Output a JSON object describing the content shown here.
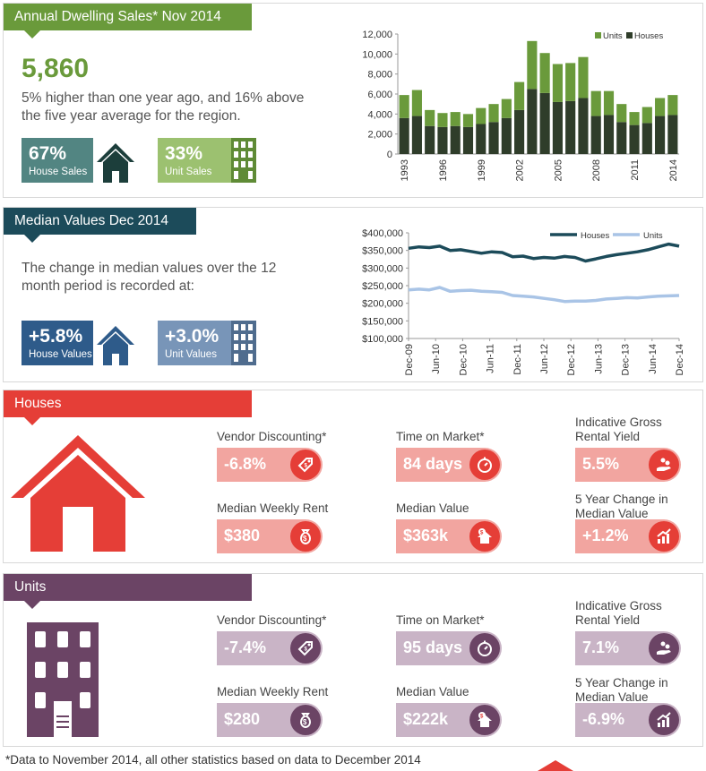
{
  "sales": {
    "title": "Annual Dwelling Sales* Nov 2014",
    "total": "5,860",
    "description": "5% higher than one year ago, and 16% above the five year average for the region.",
    "house_pct": "67%",
    "house_label": "House Sales",
    "unit_pct": "33%",
    "unit_label": "Unit Sales"
  },
  "median": {
    "title": "Median Values Dec 2014",
    "description": "The change in median values over the 12 month period is  recorded at:",
    "house_change": "+5.8%",
    "house_label": "House Values",
    "unit_change": "+3.0%",
    "unit_label": "Unit Values"
  },
  "houses": {
    "title": "Houses",
    "stats": [
      {
        "label": "Vendor Discounting*",
        "value": "-6.8%",
        "icon": "price-tag-icon"
      },
      {
        "label": "Time on Market*",
        "value": "84 days",
        "icon": "stopwatch-icon"
      },
      {
        "label": "Indicative Gross Rental Yield",
        "value": "5.5%",
        "icon": "hand-coins-icon"
      },
      {
        "label": "Median Weekly Rent",
        "value": "$380",
        "icon": "money-bag-icon"
      },
      {
        "label": "Median Value",
        "value": "$363k",
        "icon": "house-dollar-icon"
      },
      {
        "label": "5 Year Change in Median Value",
        "value": "+1.2%",
        "icon": "growth-chart-icon"
      }
    ]
  },
  "units": {
    "title": "Units",
    "stats": [
      {
        "label": "Vendor Discounting*",
        "value": "-7.4%",
        "icon": "price-tag-icon"
      },
      {
        "label": "Time on Market*",
        "value": "95 days",
        "icon": "stopwatch-icon"
      },
      {
        "label": "Indicative Gross Rental Yield",
        "value": "7.1%",
        "icon": "hand-coins-icon"
      },
      {
        "label": "Median Weekly Rent",
        "value": "$280",
        "icon": "money-bag-icon"
      },
      {
        "label": "Median Value",
        "value": "$222k",
        "icon": "house-dollar-icon"
      },
      {
        "label": "5 Year Change in Median Value",
        "value": "-6.9%",
        "icon": "growth-chart-icon"
      }
    ]
  },
  "footnote": "*Data to November 2014, all other statistics based on data to December 2014",
  "colors": {
    "green": "#6a9a3b",
    "dark_green": "#2f3d2a",
    "teal": "#1c4b5a",
    "house_red": "#e53e37",
    "house_pink": "#f2a5a0",
    "unit_purple": "#6b4465",
    "unit_lilac": "#c9b4c6",
    "navy": "#2e5b8a",
    "steel": "#7895b8"
  },
  "chart_data": [
    {
      "type": "bar",
      "stacked": true,
      "categories": [
        "1993",
        "1994",
        "1995",
        "1996",
        "1997",
        "1998",
        "1999",
        "2000",
        "2001",
        "2002",
        "2003",
        "2004",
        "2005",
        "2006",
        "2007",
        "2008",
        "2009",
        "2010",
        "2011",
        "2012",
        "2013",
        "2014"
      ],
      "tick_labels": [
        "1993",
        "1996",
        "1999",
        "2002",
        "2005",
        "2008",
        "2011",
        "2014"
      ],
      "series": [
        {
          "name": "Houses",
          "values": [
            3600,
            3800,
            2800,
            2700,
            2800,
            2700,
            3000,
            3200,
            3600,
            4400,
            6500,
            6100,
            5200,
            5300,
            5600,
            3800,
            3900,
            3200,
            2900,
            3100,
            3800,
            3900
          ]
        },
        {
          "name": "Units",
          "values": [
            2300,
            2600,
            1600,
            1400,
            1400,
            1300,
            1600,
            1800,
            1900,
            2800,
            4800,
            4000,
            3800,
            3800,
            4100,
            2500,
            2400,
            1800,
            1300,
            1600,
            1800,
            2000
          ]
        }
      ],
      "yticks": [
        0,
        2000,
        4000,
        6000,
        8000,
        10000,
        12000
      ],
      "ytick_labels": [
        "0",
        "2,000",
        "4,000",
        "6,000",
        "8,000",
        "10,000",
        "12,000"
      ],
      "ylim": [
        0,
        12000
      ],
      "legend": "top-right"
    },
    {
      "type": "line",
      "tick_labels": [
        "Dec-09",
        "Jun-10",
        "Dec-10",
        "Jun-11",
        "Dec-11",
        "Jun-12",
        "Dec-12",
        "Jun-13",
        "Dec-13",
        "Jun-14",
        "Dec-14"
      ],
      "series": [
        {
          "name": "Houses",
          "values": [
            356000,
            360000,
            358000,
            362000,
            350000,
            352000,
            347000,
            342000,
            346000,
            344000,
            332000,
            334000,
            327000,
            330000,
            328000,
            333000,
            330000,
            320000,
            326000,
            333000,
            338000,
            342000,
            346000,
            352000,
            360000,
            368000,
            362000
          ]
        },
        {
          "name": "Units",
          "values": [
            238000,
            240000,
            238000,
            245000,
            234000,
            236000,
            237000,
            234000,
            233000,
            231000,
            222000,
            220000,
            218000,
            214000,
            210000,
            205000,
            206000,
            206000,
            208000,
            212000,
            214000,
            216000,
            215000,
            218000,
            220000,
            221000,
            222000
          ]
        }
      ],
      "yticks": [
        100000,
        150000,
        200000,
        250000,
        300000,
        350000,
        400000
      ],
      "ytick_labels": [
        "$100,000",
        "$150,000",
        "$200,000",
        "$250,000",
        "$300,000",
        "$350,000",
        "$400,000"
      ],
      "ylim": [
        100000,
        400000
      ],
      "legend": "top-right"
    }
  ]
}
